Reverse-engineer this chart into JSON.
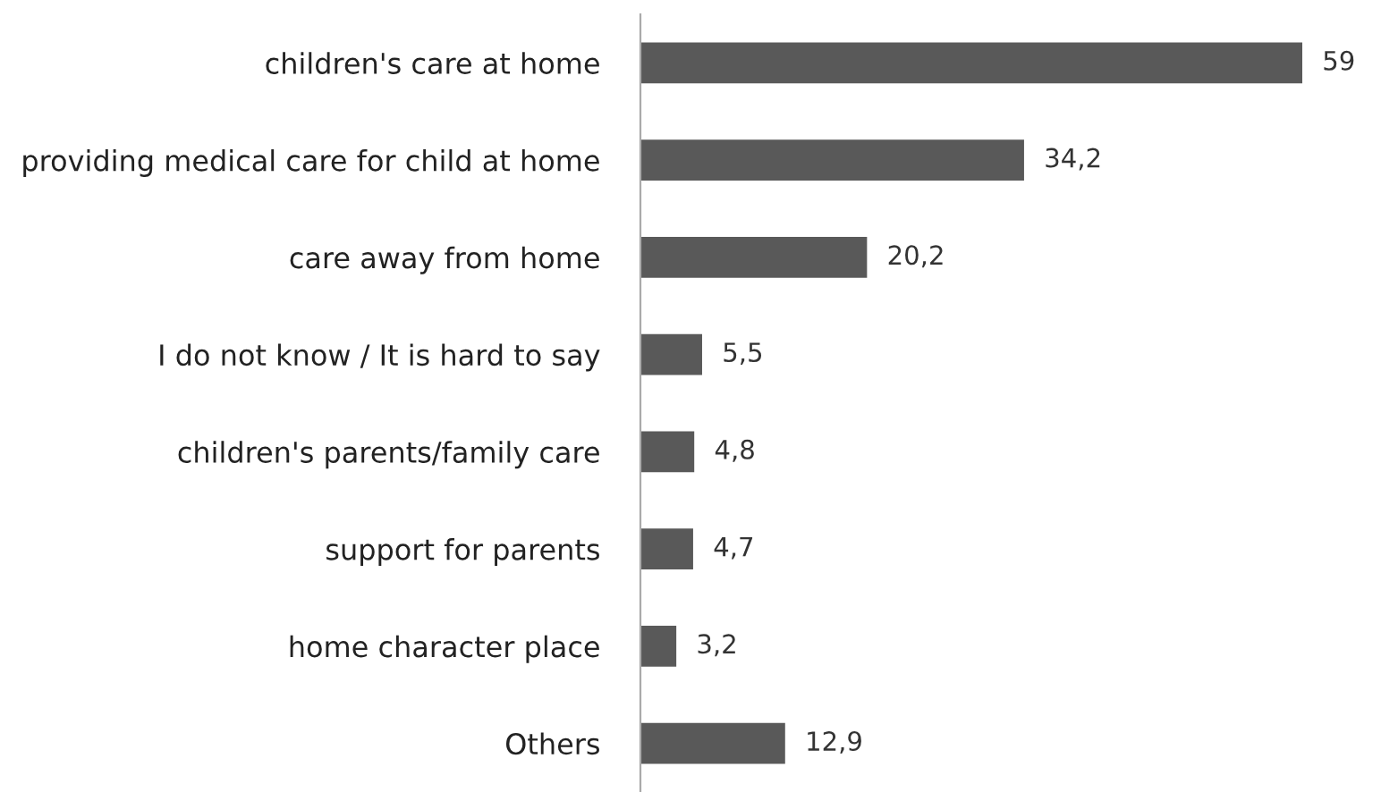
{
  "chart_data": {
    "type": "bar",
    "orientation": "horizontal",
    "categories": [
      "children's care at home",
      "providing medical care for child at home",
      "care away from home",
      "I do not know / It is hard to say",
      "children's parents/family care",
      "support for parents",
      "home character place",
      "Others"
    ],
    "values": [
      59,
      34.2,
      20.2,
      5.5,
      4.8,
      4.7,
      3.2,
      12.9
    ],
    "value_labels": [
      "59",
      "34,2",
      "20,2",
      "5,5",
      "4,8",
      "4,7",
      "3,2",
      "12,9"
    ],
    "color": "#595959",
    "grid": false,
    "legend": false
  }
}
